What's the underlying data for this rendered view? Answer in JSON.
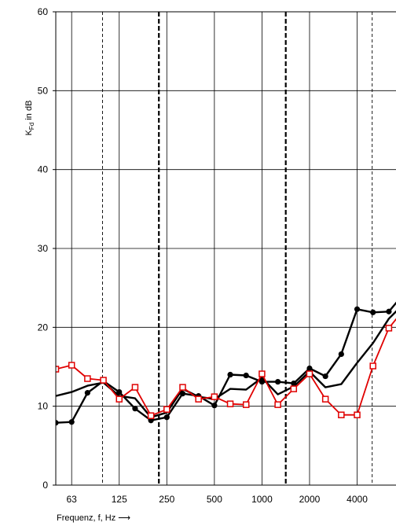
{
  "chart_data": {
    "type": "line",
    "xlabel": "Frequenz,  f, Hz",
    "xlabel_arrow": "⟶",
    "ylabel_main": "K",
    "ylabel_sub": "Fd",
    "ylabel_unit": "in dB",
    "ylim": [
      0,
      60
    ],
    "yticks": [
      0,
      10,
      20,
      30,
      40,
      50,
      60
    ],
    "x_band_index_range": [
      0,
      21.5
    ],
    "xtick_labels": [
      {
        "band": 1,
        "label": "63"
      },
      {
        "band": 4,
        "label": "125"
      },
      {
        "band": 7,
        "label": "250"
      },
      {
        "band": 10,
        "label": "500"
      },
      {
        "band": 13,
        "label": "1000"
      },
      {
        "band": 16,
        "label": "2000"
      },
      {
        "band": 19,
        "label": "4000"
      }
    ],
    "grid": true,
    "dashed_verticals": [
      {
        "band": 2.95,
        "style": "thin"
      },
      {
        "band": 6.5,
        "style": "bold"
      },
      {
        "band": 14.5,
        "style": "bold"
      },
      {
        "band": 19.95,
        "style": "thin"
      }
    ],
    "series": [
      {
        "color": "#000000",
        "marker": "none",
        "x": [
          0,
          1,
          2,
          3,
          4,
          5,
          6,
          7,
          8,
          9,
          10,
          11,
          12,
          13,
          14,
          15,
          16,
          17,
          18,
          19,
          20,
          21,
          22
        ],
        "values": [
          11.3,
          11.8,
          12.6,
          13.0,
          11.3,
          11.0,
          8.6,
          9.2,
          12.2,
          11.2,
          10.9,
          12.2,
          12.1,
          13.6,
          11.5,
          12.5,
          14.4,
          12.4,
          12.8,
          15.5,
          18.0,
          21.1,
          23.1
        ]
      },
      {
        "color": "#000000",
        "marker": "circle",
        "x": [
          0,
          1,
          2,
          3,
          4,
          5,
          6,
          7,
          8,
          9,
          10,
          11,
          12,
          13,
          14,
          15,
          16,
          17,
          18,
          19,
          20,
          21,
          22
        ],
        "values": [
          7.9,
          8.0,
          11.7,
          13.2,
          11.8,
          9.7,
          8.2,
          8.6,
          11.6,
          11.3,
          10.1,
          14.0,
          13.9,
          13.1,
          13.1,
          12.9,
          14.8,
          13.8,
          16.6,
          22.3,
          21.9,
          22.0,
          24.4
        ]
      },
      {
        "color": "#e00000",
        "marker": "square",
        "x": [
          0,
          1,
          2,
          3,
          4,
          5,
          6,
          7,
          8,
          9,
          10,
          11,
          12,
          13,
          14,
          15,
          16,
          17,
          18,
          19,
          20,
          21,
          22
        ],
        "values": [
          14.7,
          15.2,
          13.5,
          13.3,
          10.9,
          12.4,
          8.8,
          9.6,
          12.4,
          10.9,
          11.2,
          10.3,
          10.2,
          14.1,
          10.2,
          12.2,
          14.1,
          10.9,
          8.9,
          8.9,
          15.1,
          19.9,
          22.4
        ]
      }
    ]
  }
}
